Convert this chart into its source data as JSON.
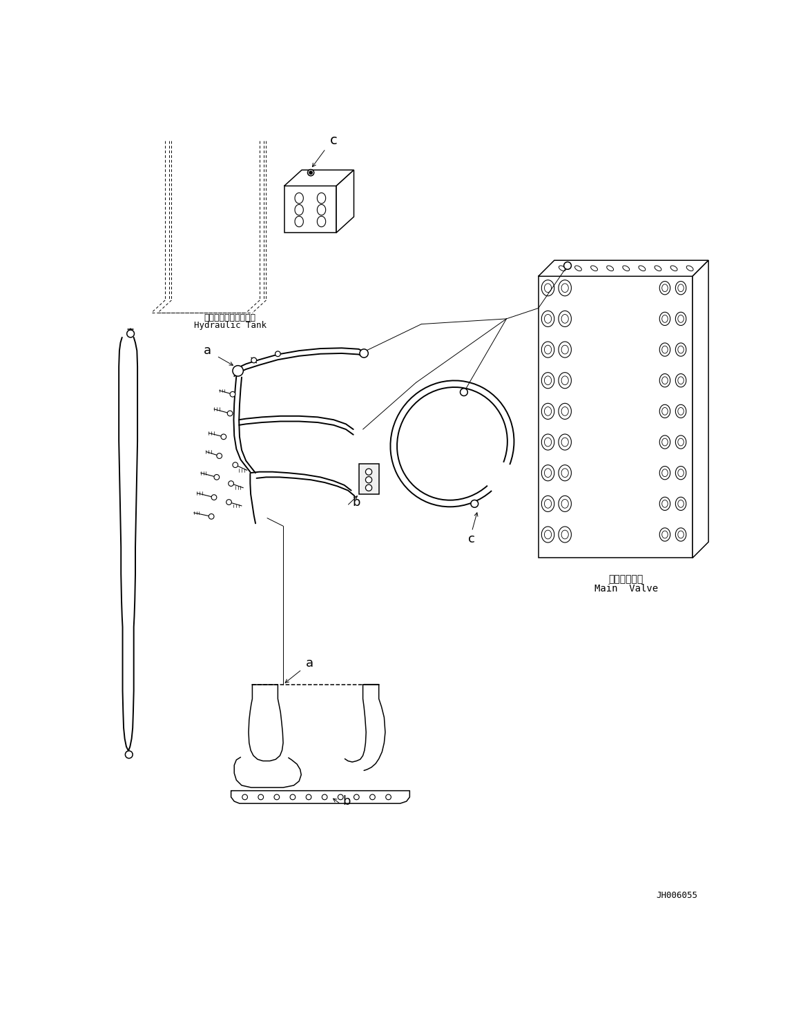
{
  "bg_color": "#ffffff",
  "line_color": "#000000",
  "fig_width": 11.63,
  "fig_height": 14.75,
  "dpi": 100,
  "part_code": "JH006055",
  "labels": {
    "hydraulic_tank_jp": "ハイドロリックタンク",
    "hydraulic_tank_en": "Hydraulic Tank",
    "main_valve_jp": "メインバルブ",
    "main_valve_en": "Main  Valve"
  },
  "lw_thin": 0.7,
  "lw_med": 1.1,
  "lw_thick": 1.6,
  "lw_hose": 1.4
}
